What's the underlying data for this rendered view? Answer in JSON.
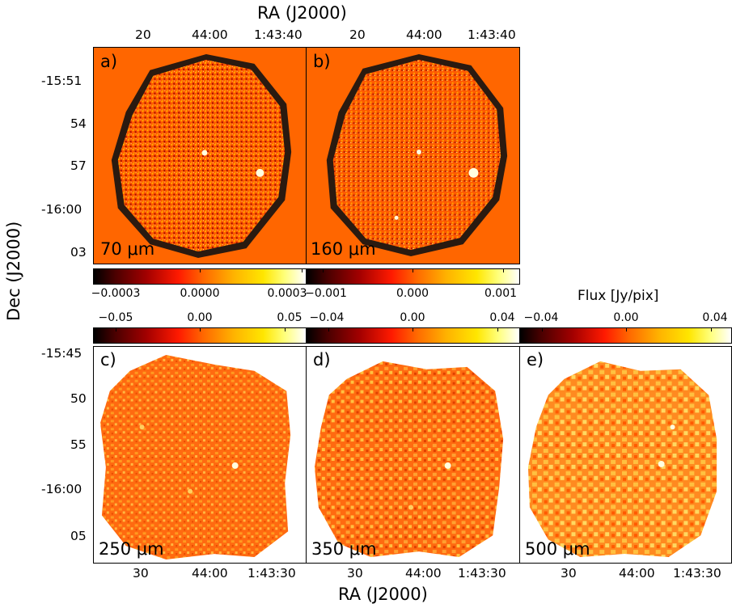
{
  "figure": {
    "top_axis_title": "RA (J2000)",
    "bottom_axis_title": "RA (J2000)",
    "left_axis_title": "Dec (J2000)",
    "flux_label": "Flux [Jy/pix]"
  },
  "top_ra_ticks": [
    "20",
    "44:00",
    "1:43:40"
  ],
  "top_dec_ticks": [
    "-15:51",
    "54",
    "57",
    "-16:00",
    "03"
  ],
  "bottom_ra_ticks": [
    "30",
    "44:00",
    "1:43:30"
  ],
  "bottom_dec_ticks": [
    "-15:45",
    "50",
    "55",
    "-16:00",
    "05"
  ],
  "panels": [
    {
      "letter": "a)",
      "wavelength": "70 μm",
      "colorbar_ticks": [
        "−0.0003",
        "0.0000",
        "0.0003"
      ]
    },
    {
      "letter": "b)",
      "wavelength": "160 μm",
      "colorbar_ticks": [
        "−0.001",
        "0.000",
        "0.001"
      ]
    },
    {
      "letter": "c)",
      "wavelength": "250 μm",
      "colorbar_ticks": [
        "−0.05",
        "0.00",
        "0.05"
      ]
    },
    {
      "letter": "d)",
      "wavelength": "350 μm",
      "colorbar_ticks": [
        "−0.04",
        "0.00",
        "0.04"
      ]
    },
    {
      "letter": "e)",
      "wavelength": "500 μm",
      "colorbar_ticks": [
        "−0.04",
        "0.00",
        "0.04"
      ]
    }
  ],
  "colors": {
    "background_orange": "#ff6600",
    "map_orange": "#ff5a10",
    "noise_edge": "#2a1a10",
    "bright_source": "#ffffe0"
  }
}
